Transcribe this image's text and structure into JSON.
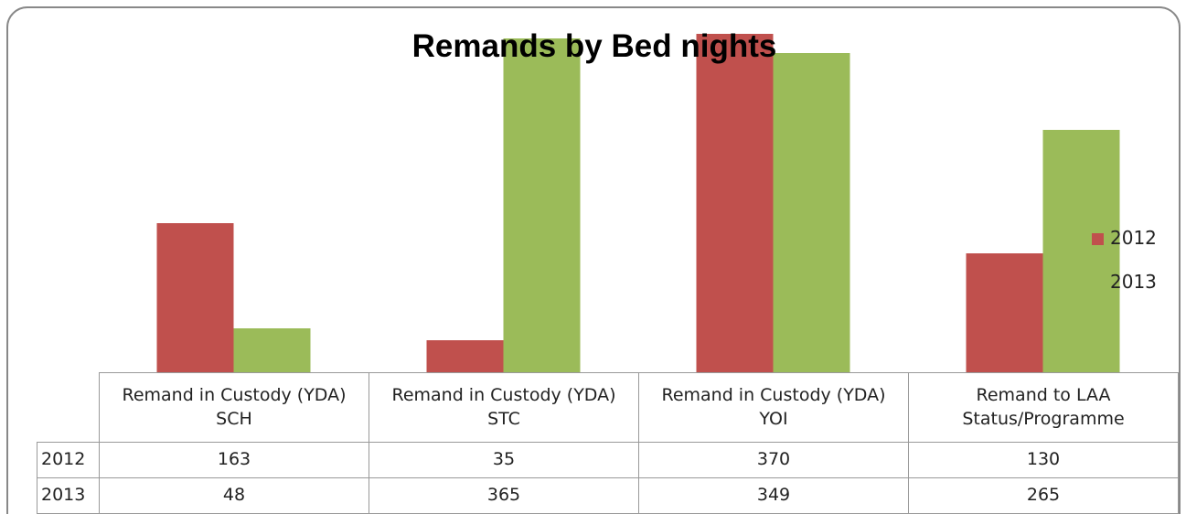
{
  "chart_data": {
    "type": "bar",
    "title": "Remands by Bed nights",
    "categories": [
      "Remand in Custody (YDA)\nSCH",
      "Remand in Custody (YDA)\nSTC",
      "Remand in Custody (YDA)\nYOI",
      "Remand to LAA\nStatus/Programme"
    ],
    "series": [
      {
        "name": "2012",
        "color": "#c0504d",
        "values": [
          163,
          35,
          370,
          130
        ]
      },
      {
        "name": "2013",
        "color": "#9bbb59",
        "values": [
          48,
          365,
          349,
          265
        ]
      }
    ],
    "ylim": [
      0,
      400
    ],
    "legend": "right"
  }
}
